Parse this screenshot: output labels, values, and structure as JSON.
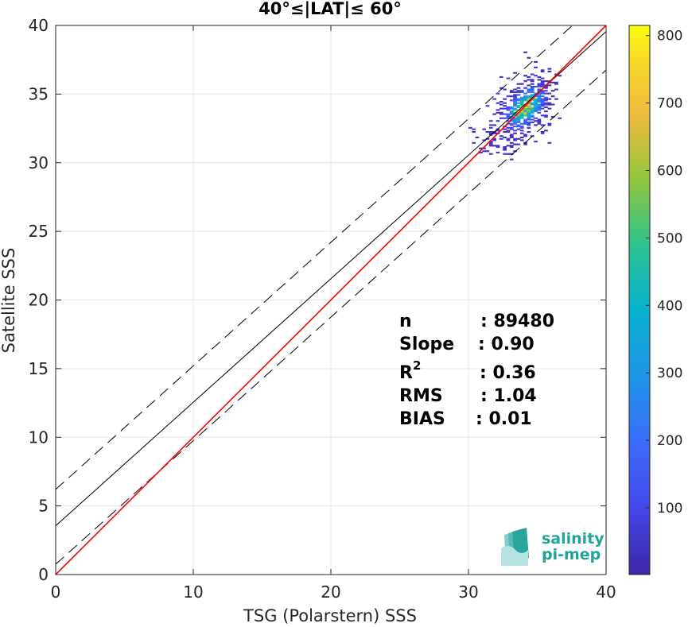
{
  "chart_data": {
    "type": "heatmap",
    "title": "40°≤|LAT|≤ 60°",
    "xlabel": "TSG (Polarstern) SSS",
    "ylabel": "Satellite SSS",
    "xlim": [
      0,
      40
    ],
    "ylim": [
      0,
      40
    ],
    "xticks": [
      "0",
      "10",
      "20",
      "30",
      "40"
    ],
    "yticks": [
      "0",
      "5",
      "10",
      "15",
      "20",
      "25",
      "30",
      "35",
      "40"
    ],
    "grid": true,
    "colorbar": {
      "range": [
        1,
        815
      ],
      "ticks": [
        "100",
        "200",
        "300",
        "400",
        "500",
        "600",
        "700",
        "800"
      ],
      "colormap": "parula"
    },
    "lines": {
      "identity": {
        "slope": 1.0,
        "intercept": 0.0,
        "color": "#ff0000"
      },
      "fit": {
        "slope": 0.9,
        "intercept": 3.55,
        "color": "#000000"
      },
      "fit_upper": {
        "slope": 0.9,
        "intercept": 6.2,
        "style": "dashed"
      },
      "fit_lower": {
        "slope": 0.9,
        "intercept": 0.75,
        "style": "dashed"
      }
    },
    "density": {
      "center_x": 34.0,
      "center_y": 34.0,
      "x_range": [
        30.0,
        36.5
      ],
      "y_range": [
        29.5,
        40.0
      ]
    },
    "stats": [
      {
        "label": "n",
        "value": ": 89480"
      },
      {
        "label": "Slope",
        "value": ": 0.90"
      },
      {
        "label": "R²",
        "value": ": 0.36"
      },
      {
        "label": "RMS",
        "value": ": 1.04"
      },
      {
        "label": "BIAS",
        "value": ": 0.01"
      }
    ]
  },
  "logo": {
    "line1": "salinity",
    "line2": "pi-mep"
  }
}
